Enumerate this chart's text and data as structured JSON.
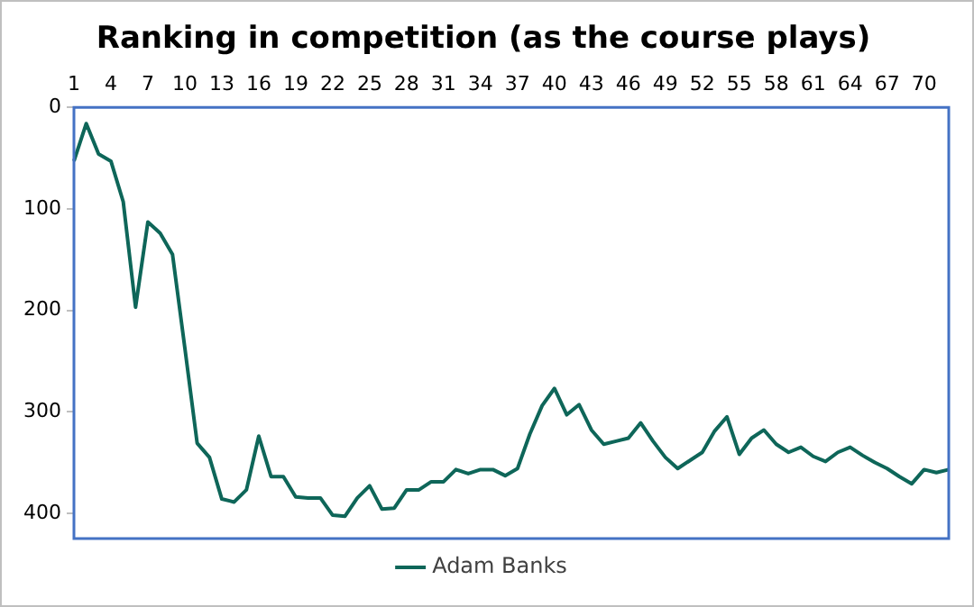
{
  "chart_data": {
    "type": "line",
    "title": "Ranking in competition (as the course plays)",
    "categories": [
      "1",
      null,
      null,
      "4",
      null,
      null,
      "7",
      null,
      null,
      "10",
      null,
      null,
      "13",
      null,
      null,
      "16",
      null,
      null,
      "19",
      null,
      null,
      "22",
      null,
      null,
      "25",
      null,
      null,
      "28",
      null,
      null,
      "31",
      null,
      null,
      "34",
      null,
      null,
      "37",
      null,
      null,
      "40",
      null,
      null,
      "43",
      null,
      null,
      "46",
      null,
      null,
      "49",
      null,
      null,
      "52",
      null,
      null,
      "55",
      null,
      null,
      "58",
      null,
      null,
      "61",
      null,
      null,
      "64",
      null,
      null,
      "67",
      null,
      null,
      "70",
      null,
      null
    ],
    "series": [
      {
        "name": "Adam Banks",
        "color": "#0e6659",
        "values": [
          53,
          16,
          46,
          53,
          93,
          197,
          113,
          124,
          145,
          237,
          331,
          345,
          386,
          389,
          377,
          324,
          364,
          364,
          384,
          385,
          385,
          402,
          403,
          385,
          373,
          396,
          395,
          377,
          377,
          369,
          369,
          357,
          361,
          357,
          357,
          363,
          356,
          322,
          294,
          277,
          303,
          293,
          318,
          332,
          329,
          326,
          311,
          329,
          345,
          356,
          348,
          340,
          319,
          305,
          342,
          326,
          318,
          332,
          340,
          335,
          344,
          349,
          340,
          335,
          343,
          350,
          356,
          364,
          371,
          357,
          360,
          357
        ]
      }
    ],
    "ylim": [
      425,
      0
    ],
    "yticks": [
      0,
      100,
      200,
      300,
      400
    ],
    "grid": false,
    "legend": "bottom",
    "marker": "none",
    "line_style": "solid"
  }
}
